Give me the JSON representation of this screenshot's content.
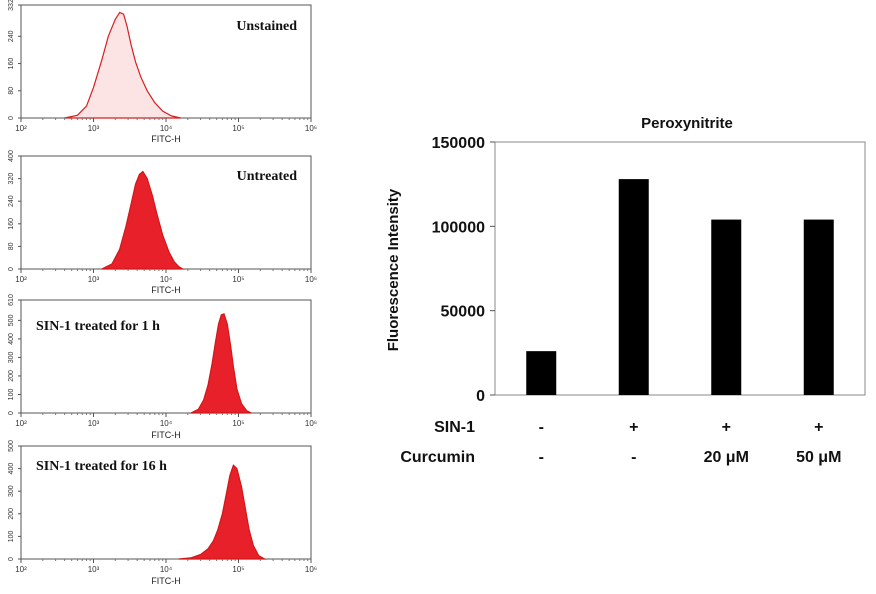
{
  "chart_data": [
    {
      "type": "area",
      "title": "Unstained",
      "xlabel": "FITC-H",
      "x_scale": "log",
      "xlim": [
        100,
        1000000
      ],
      "x_tick_labels": [
        "10²",
        "10³",
        "10⁴",
        "10⁵",
        "10⁶"
      ],
      "ylim": [
        0,
        332
      ],
      "y_ticks": [
        0,
        80,
        160,
        240,
        332
      ],
      "fill": "#fde4e4",
      "stroke": "#d42020",
      "x": [
        400,
        600,
        800,
        1000,
        1300,
        1600,
        2000,
        2300,
        2600,
        2900,
        3300,
        3800,
        4500,
        5500,
        7000,
        9000,
        12000,
        16000
      ],
      "values": [
        0,
        8,
        35,
        90,
        170,
        240,
        290,
        310,
        305,
        270,
        215,
        165,
        120,
        80,
        45,
        20,
        6,
        0
      ]
    },
    {
      "type": "area",
      "title": "Untreated",
      "xlabel": "FITC-H",
      "x_scale": "log",
      "xlim": [
        100,
        1000000
      ],
      "x_tick_labels": [
        "10²",
        "10³",
        "10⁴",
        "10⁵",
        "10⁶"
      ],
      "ylim": [
        0,
        400
      ],
      "y_ticks": [
        0,
        80,
        160,
        240,
        320,
        400
      ],
      "fill": "#e8202a",
      "stroke": "#d01818",
      "x": [
        1300,
        1800,
        2300,
        2800,
        3300,
        3800,
        4300,
        4800,
        5500,
        6500,
        7500,
        9000,
        11000,
        13000,
        15000,
        17000
      ],
      "values": [
        0,
        18,
        70,
        150,
        230,
        300,
        335,
        345,
        320,
        260,
        195,
        120,
        60,
        25,
        8,
        0
      ]
    },
    {
      "type": "area",
      "title": "SIN-1 treated for 1 h",
      "xlabel": "FITC-H",
      "x_scale": "log",
      "xlim": [
        100,
        1000000
      ],
      "x_tick_labels": [
        "10²",
        "10³",
        "10⁴",
        "10⁵",
        "10⁶"
      ],
      "ylim": [
        0,
        610
      ],
      "y_ticks": [
        0,
        100,
        200,
        300,
        400,
        500,
        610
      ],
      "fill": "#e8202a",
      "stroke": "#d01818",
      "x": [
        22000,
        28000,
        33000,
        38000,
        43000,
        48000,
        53000,
        58000,
        63000,
        70000,
        78000,
        85000,
        95000,
        110000,
        130000,
        150000
      ],
      "values": [
        0,
        20,
        70,
        150,
        260,
        380,
        480,
        530,
        535,
        480,
        360,
        250,
        130,
        50,
        12,
        0
      ]
    },
    {
      "type": "area",
      "title": "SIN-1 treated for 16 h",
      "xlabel": "FITC-H",
      "x_scale": "log",
      "xlim": [
        100,
        1000000
      ],
      "x_tick_labels": [
        "10²",
        "10³",
        "10⁴",
        "10⁵",
        "10⁶"
      ],
      "ylim": [
        0,
        500
      ],
      "y_ticks": [
        0,
        100,
        200,
        300,
        400,
        500
      ],
      "fill": "#e8202a",
      "stroke": "#d01818",
      "x": [
        15000,
        22000,
        30000,
        38000,
        45000,
        52000,
        60000,
        68000,
        76000,
        85000,
        95000,
        110000,
        125000,
        140000,
        160000,
        190000,
        230000
      ],
      "values": [
        0,
        5,
        20,
        45,
        80,
        130,
        200,
        290,
        370,
        415,
        400,
        320,
        220,
        130,
        60,
        15,
        0
      ]
    },
    {
      "type": "bar",
      "title": "Peroxynitrite",
      "ylabel": "Fluorescence Intensity",
      "ylim": [
        0,
        150000
      ],
      "y_ticks": [
        0,
        50000,
        100000,
        150000
      ],
      "bar_color": "#000000",
      "values": [
        26000,
        128000,
        104000,
        104000
      ],
      "condition_rows": [
        {
          "label": "SIN-1",
          "values": [
            "-",
            "+",
            "+",
            "+"
          ]
        },
        {
          "label": "Curcumin",
          "values": [
            "-",
            "-",
            "20 μM",
            "50 μM"
          ]
        }
      ]
    }
  ]
}
